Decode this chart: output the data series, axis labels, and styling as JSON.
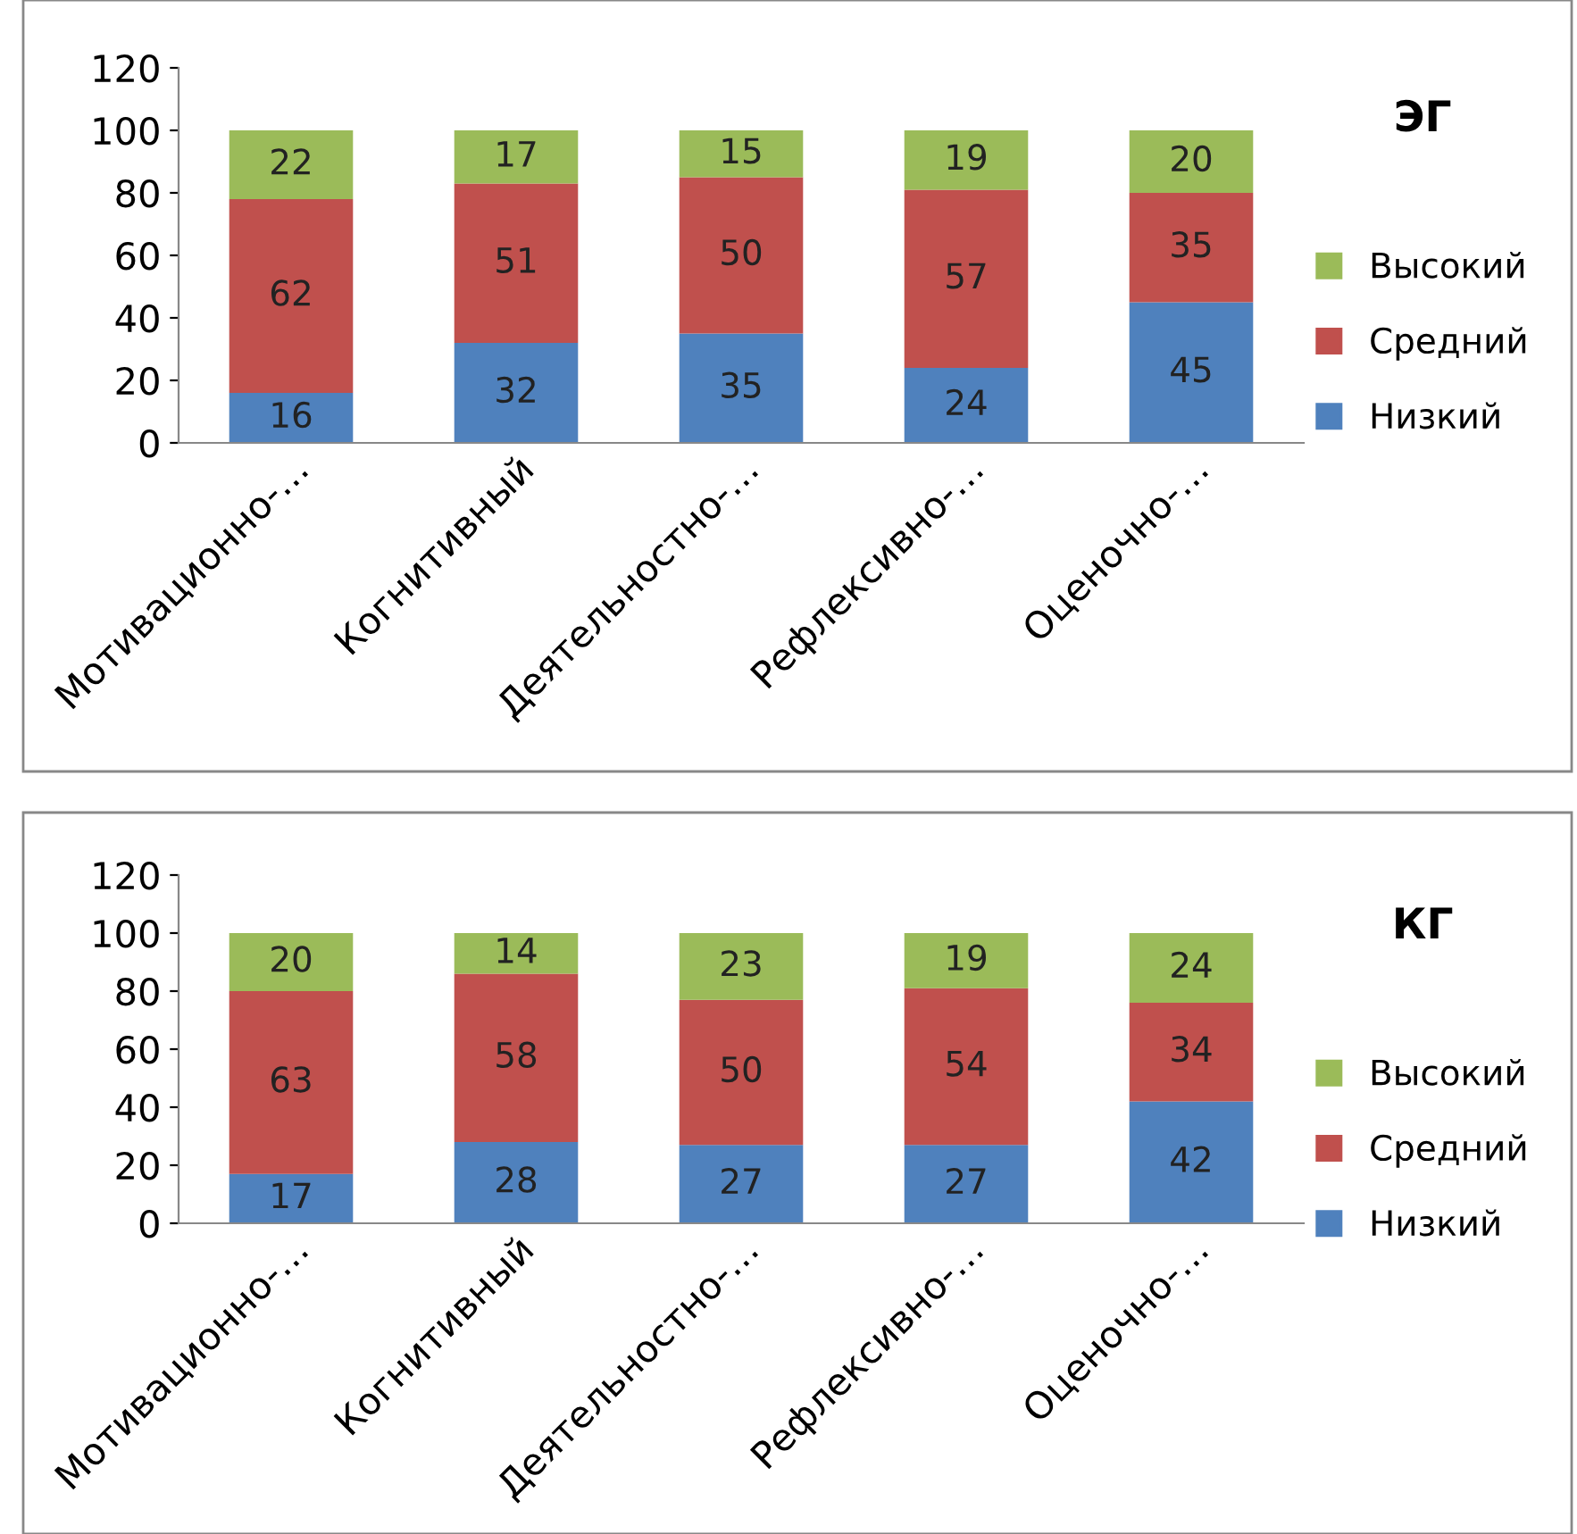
{
  "chart_data": [
    {
      "type": "bar",
      "legend_title": "ЭГ",
      "stacked": true,
      "data_labels": true,
      "legend": "right",
      "grid": false,
      "categories": [
        "Мотивационно-…",
        "Когнитивный",
        "Деятельностно-…",
        "Рефлексивно-…",
        "Оценочно-…"
      ],
      "series": [
        {
          "name": "Низкий",
          "color": "#4f81bd",
          "values": [
            16,
            32,
            35,
            24,
            45
          ]
        },
        {
          "name": "Средний",
          "color": "#c0504d",
          "values": [
            62,
            51,
            50,
            57,
            35
          ]
        },
        {
          "name": "Высокий",
          "color": "#9bbb59",
          "values": [
            22,
            17,
            15,
            19,
            20
          ]
        }
      ],
      "ylim": [
        0,
        120
      ],
      "yticks": [
        0,
        20,
        40,
        60,
        80,
        100,
        120
      ]
    },
    {
      "type": "bar",
      "legend_title": "КГ",
      "stacked": true,
      "data_labels": true,
      "legend": "right",
      "grid": false,
      "categories": [
        "Мотивационно-…",
        "Когнитивный",
        "Деятельностно-…",
        "Рефлексивно-…",
        "Оценочно-…"
      ],
      "series": [
        {
          "name": "Низкий",
          "color": "#4f81bd",
          "values": [
            17,
            28,
            27,
            27,
            42
          ]
        },
        {
          "name": "Средний",
          "color": "#c0504d",
          "values": [
            63,
            58,
            50,
            54,
            34
          ]
        },
        {
          "name": "Высокий",
          "color": "#9bbb59",
          "values": [
            20,
            14,
            23,
            19,
            24
          ]
        }
      ],
      "ylim": [
        0,
        120
      ],
      "yticks": [
        0,
        20,
        40,
        60,
        80,
        100,
        120
      ]
    }
  ]
}
